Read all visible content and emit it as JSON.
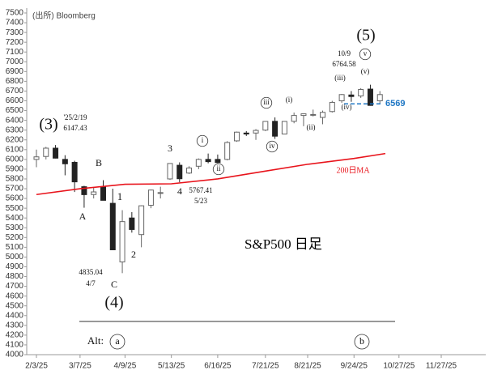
{
  "chart_data": {
    "type": "candlestick",
    "source": "(出所) Bloomberg",
    "title": "S&P500 日足",
    "ylim": [
      4000,
      7500
    ],
    "yticks": [
      4000,
      4100,
      4200,
      4300,
      4400,
      4500,
      4600,
      4700,
      4800,
      4900,
      5000,
      5100,
      5200,
      5300,
      5400,
      5500,
      5600,
      5700,
      5800,
      5900,
      6000,
      6100,
      6200,
      6300,
      6400,
      6500,
      6600,
      6700,
      6800,
      6900,
      7000,
      7100,
      7200,
      7300,
      7400,
      7500
    ],
    "xticks": [
      "2/3/25",
      "3/7/25",
      "4/9/25",
      "5/13/25",
      "6/16/25",
      "7/21/25",
      "8/21/25",
      "9/24/25",
      "10/27/25",
      "11/27/25"
    ],
    "up_color": "#666666",
    "down_color": "#222222",
    "candles": {
      "x": [
        "2/3/25",
        "2/10/25",
        "2/17/25",
        "2/24/25",
        "3/3/25",
        "3/10/25",
        "3/17/25",
        "3/24/25",
        "3/31/25",
        "4/7/25",
        "4/14/25",
        "4/21/25",
        "4/28/25",
        "5/5/25",
        "5/12/25",
        "5/19/25",
        "5/26/25",
        "6/2/25",
        "6/9/25",
        "6/16/25",
        "6/23/25",
        "6/30/25",
        "7/7/25",
        "7/14/25",
        "7/21/25",
        "7/28/25",
        "8/4/25",
        "8/11/25",
        "8/18/25",
        "8/25/25",
        "9/1/25",
        "9/8/25",
        "9/15/25",
        "9/22/25",
        "9/29/25",
        "10/6/25",
        "10/13/25"
      ],
      "open": [
        6000,
        6030,
        6115,
        6000,
        5970,
        5720,
        5640,
        5720,
        5550,
        4950,
        5400,
        5230,
        5530,
        5660,
        5800,
        5940,
        5860,
        5930,
        6000,
        6000,
        6000,
        6190,
        6270,
        6270,
        6300,
        6390,
        6260,
        6390,
        6450,
        6460,
        6430,
        6490,
        6600,
        6660,
        6650,
        6720,
        6600
      ],
      "high": [
        6100,
        6128,
        6147,
        6043,
        5986,
        5730,
        5715,
        5787,
        5700,
        5480,
        5460,
        5530,
        5690,
        5720,
        5960,
        5970,
        5930,
        6010,
        6060,
        6050,
        6187,
        6285,
        6290,
        6310,
        6390,
        6430,
        6390,
        6480,
        6470,
        6510,
        6500,
        6600,
        6670,
        6700,
        6730,
        6765,
        6700
      ],
      "low": [
        5920,
        6000,
        6010,
        5837,
        5666,
        5505,
        5600,
        5580,
        5070,
        4835,
        5250,
        5100,
        5500,
        5600,
        5790,
        5767,
        5850,
        5900,
        5960,
        5960,
        5990,
        6180,
        6240,
        6200,
        6290,
        6210,
        6260,
        6370,
        6340,
        6440,
        6360,
        6480,
        6580,
        6590,
        6630,
        6550,
        6570
      ],
      "close": [
        6026,
        6115,
        6013,
        5955,
        5770,
        5639,
        5667,
        5581,
        5074,
        5363,
        5282,
        5525,
        5686,
        5660,
        5958,
        5802,
        5912,
        6000,
        5977,
        5968,
        6173,
        6279,
        6260,
        6297,
        6389,
        6238,
        6389,
        6450,
        6467,
        6460,
        6482,
        6584,
        6664,
        6644,
        6716,
        6553,
        6664
      ]
    },
    "ma": {
      "name": "200日MA",
      "color": "#e8141c",
      "x": [
        "2/3/25",
        "3/7/25",
        "4/9/25",
        "5/13/25",
        "6/16/25",
        "7/21/25",
        "8/21/25",
        "9/24/25",
        "10/17/25"
      ],
      "values": [
        5640,
        5700,
        5745,
        5750,
        5800,
        5880,
        5950,
        6010,
        6060
      ]
    },
    "support": {
      "value": 6569,
      "label": "6569",
      "color": "#1f77c4"
    },
    "annotations": [
      "(5)",
      "10/9",
      "6764.58",
      "v",
      "(v)",
      "(iii)",
      "(iv)",
      "(i)",
      "iii",
      "i",
      "(ii)",
      "iv",
      "ii",
      "(3)",
      "'25/2/19",
      "6147.43",
      "3",
      "B",
      "1",
      "4",
      "5767.41",
      "5/23",
      "A",
      "2",
      "4835.04",
      "4/7",
      "C",
      "(4)",
      "Alt:",
      "a",
      "b"
    ]
  }
}
